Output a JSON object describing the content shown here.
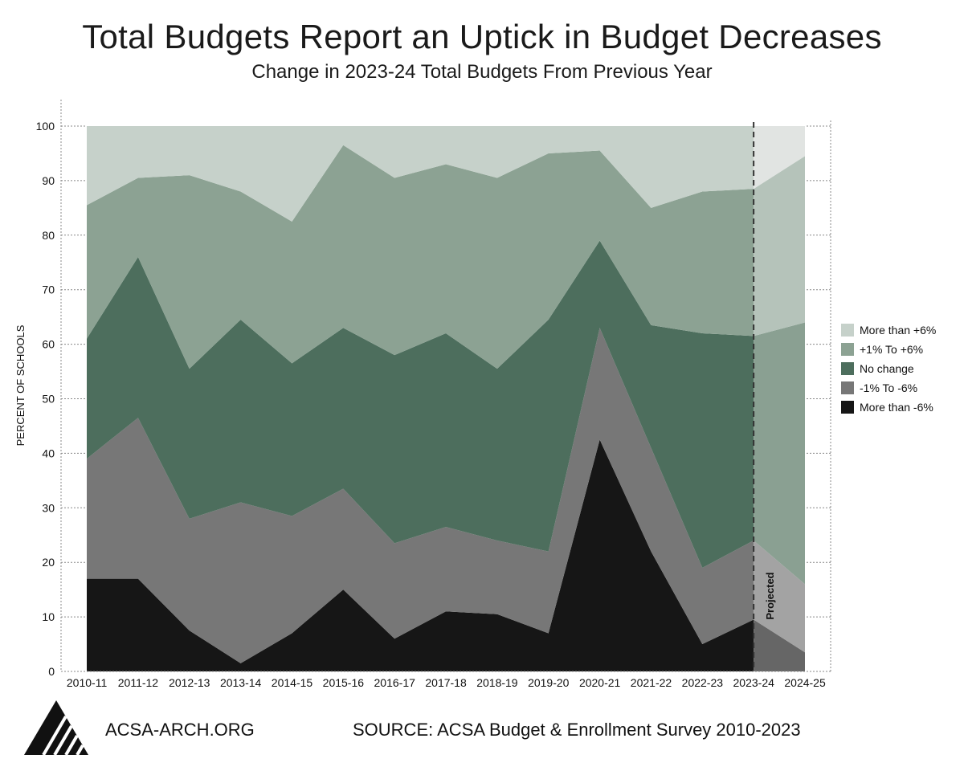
{
  "title": "Total Budgets Report an Uptick in Budget Decreases",
  "subtitle": "Change in 2023-24 Total Budgets From Previous Year",
  "footer": {
    "website": "ACSA-ARCH.ORG",
    "source": "SOURCE: ACSA Budget & Enrollment Survey 2010-2023"
  },
  "chart_data": {
    "type": "area",
    "stacked": true,
    "title": "Total Budgets Report an Uptick in Budget Decreases",
    "subtitle": "Change in 2023-24 Total Budgets From Previous Year",
    "xlabel": "",
    "ylabel": "PERCENT OF SCHOOLS",
    "ylim": [
      0,
      100
    ],
    "yticks": [
      0,
      10,
      20,
      30,
      40,
      50,
      60,
      70,
      80,
      90,
      100
    ],
    "grid": "dotted tick marks on both y axes",
    "legend_position": "right",
    "categories": [
      "2010-11",
      "2011-12",
      "2012-13",
      "2013-14",
      "2014-15",
      "2015-16",
      "2016-17",
      "2017-18",
      "2018-19",
      "2019-20",
      "2020-21",
      "2021-22",
      "2022-23",
      "2023-24",
      "2024-25"
    ],
    "cumulative_tops": {
      "More than -6%": [
        17,
        17,
        7.5,
        1.5,
        7,
        15,
        6,
        11,
        10.5,
        7,
        42.5,
        22,
        5,
        9.5,
        3.5
      ],
      "-1% To -6%": [
        39,
        46.5,
        28,
        31,
        28.5,
        33.5,
        23.5,
        26.5,
        24,
        22,
        63,
        41,
        19,
        24,
        16
      ],
      "No change": [
        61,
        76,
        55.5,
        64.5,
        56.5,
        63,
        58,
        62,
        55.5,
        64.5,
        79,
        63.5,
        62,
        61.5,
        64
      ],
      "+1% To +6%": [
        85.5,
        90.5,
        91,
        88,
        82.5,
        96.5,
        90.5,
        93,
        90.5,
        95,
        95.5,
        85,
        88,
        88.5,
        94.5
      ],
      "More than +6%": [
        100,
        100,
        100,
        100,
        100,
        100,
        100,
        100,
        100,
        100,
        100,
        100,
        100,
        100,
        100
      ]
    },
    "series": [
      {
        "name": "More than -6%",
        "values": [
          17,
          17,
          7.5,
          1.5,
          7,
          15,
          6,
          11,
          10.5,
          7,
          42.5,
          22,
          5,
          9.5,
          3.5
        ],
        "color": "#161616",
        "projected_color": "#666666"
      },
      {
        "name": "-1% To -6%",
        "values": [
          22,
          29.5,
          20.5,
          29.5,
          21.5,
          18.5,
          17.5,
          15.5,
          13.5,
          15,
          20.5,
          19,
          14,
          14.5,
          12.5
        ],
        "color": "#777777",
        "projected_color": "#a3a3a3"
      },
      {
        "name": "No change",
        "values": [
          22,
          29.5,
          27.5,
          33.5,
          28,
          29.5,
          34.5,
          35.5,
          31.5,
          42.5,
          16,
          22.5,
          43,
          37.5,
          48
        ],
        "color": "#4d6e5d",
        "projected_color": "#8aa092"
      },
      {
        "name": "+1% To +6%",
        "values": [
          24.5,
          14.5,
          35.5,
          23.5,
          26,
          33.5,
          32.5,
          31,
          35,
          30.5,
          16.5,
          21.5,
          26,
          27,
          30.5
        ],
        "color": "#8ca293",
        "projected_color": "#b5c3ba"
      },
      {
        "name": "More than +6%",
        "values": [
          14.5,
          9.5,
          9,
          12,
          17.5,
          3.5,
          9.5,
          7,
          9.5,
          5,
          4.5,
          15,
          12,
          11.5,
          5.5
        ],
        "color": "#c6d1ca",
        "projected_color": "#e1e4e2"
      }
    ],
    "annotations": [
      {
        "text": "Projected",
        "x": "2023-24",
        "note": "dashed line; 2024-25 segment is projected"
      }
    ]
  }
}
